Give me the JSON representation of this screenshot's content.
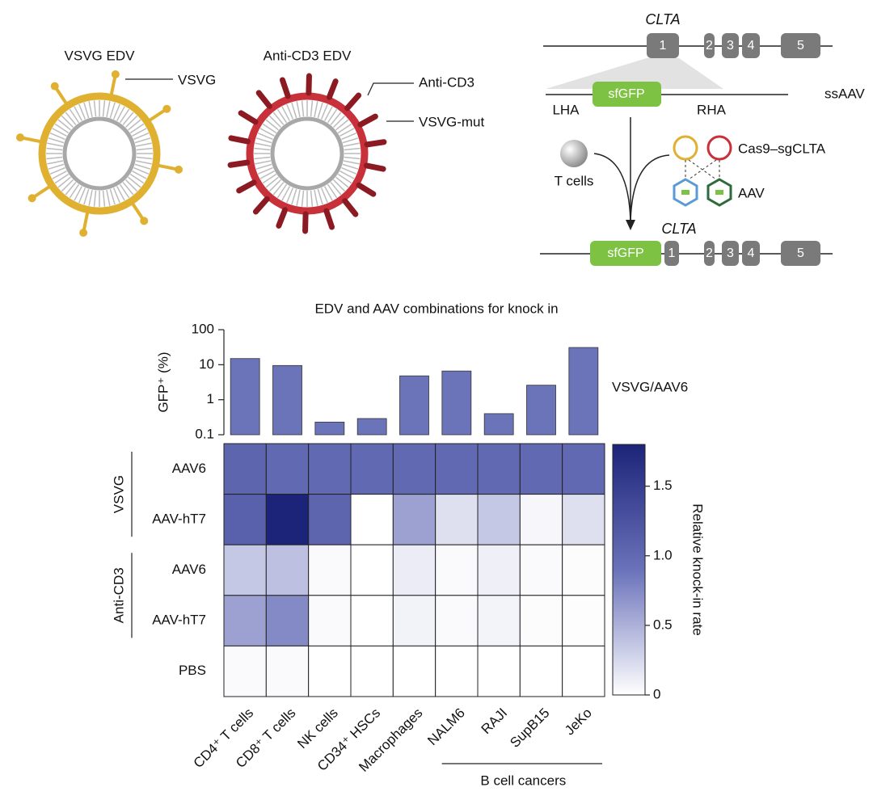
{
  "diagram": {
    "vsvg_edv": {
      "title": "VSVG EDV",
      "label": "VSVG"
    },
    "anti_cd3_edv": {
      "title": "Anti-CD3 EDV",
      "labels": [
        "Anti-CD3",
        "VSVG-mut"
      ]
    },
    "locus": {
      "gene": "CLTA",
      "exons": [
        "1",
        "2",
        "3",
        "4",
        "5"
      ]
    },
    "donor": {
      "left_arm": "LHA",
      "insert": "sfGFP",
      "right_arm": "RHA",
      "vector": "ssAAV"
    },
    "cells": "T cells",
    "editor": "Cas9–sgCLTA",
    "vehicle": "AAV",
    "edited": {
      "gene": "CLTA",
      "insert": "sfGFP",
      "exons": [
        "1",
        "2",
        "3",
        "4",
        "5"
      ]
    }
  },
  "chart_data": [
    {
      "type": "bar",
      "title": "EDV and AAV combinations for knock in",
      "ylabel": "GFP⁺ (%)",
      "categories": [
        "CD4⁺ T cells",
        "CD8⁺ T cells",
        "NK cells",
        "CD34⁺ HSCs",
        "Macrophages",
        "NALM6",
        "RAJI",
        "SupB15",
        "JeKo"
      ],
      "values": [
        15,
        9.5,
        0.23,
        0.29,
        4.8,
        6.6,
        0.4,
        2.6,
        31
      ],
      "color": "#6b74b9",
      "log_scale": true,
      "ylim": [
        0.1,
        100
      ],
      "yticks": [
        0.1,
        1,
        10,
        100
      ],
      "annotation": "VSVG/AAV6"
    },
    {
      "type": "heatmap",
      "rows": [
        "AAV6",
        "AAV-hT7",
        "AAV6",
        "AAV-hT7",
        "PBS"
      ],
      "row_groups": [
        "VSVG",
        "Anti-CD3"
      ],
      "column_group": "B cell cancers",
      "values": [
        [
          1.05,
          1.0,
          1.0,
          1.0,
          1.0,
          1.0,
          1.0,
          1.0,
          1.0
        ],
        [
          1.1,
          1.8,
          1.05,
          0,
          0.6,
          0.2,
          0.35,
          0.05,
          0.2
        ],
        [
          0.35,
          0.4,
          0.03,
          0,
          0.12,
          0.03,
          0.1,
          0.03,
          0.02
        ],
        [
          0.6,
          0.75,
          0.03,
          0,
          0.08,
          0.03,
          0.07,
          0.02,
          0.01
        ],
        [
          0.03,
          0.03,
          0,
          0,
          0,
          0,
          0,
          0,
          0
        ]
      ],
      "colorbar": {
        "label": "Relative knock-in rate",
        "zlim": [
          0,
          1.8
        ],
        "ticks": [
          0,
          0.5,
          {
            "value": 1,
            "label": "1.0"
          },
          1.5
        ],
        "colors": [
          "#ffffff",
          "#6a72ba",
          "#1c2479"
        ]
      }
    }
  ]
}
